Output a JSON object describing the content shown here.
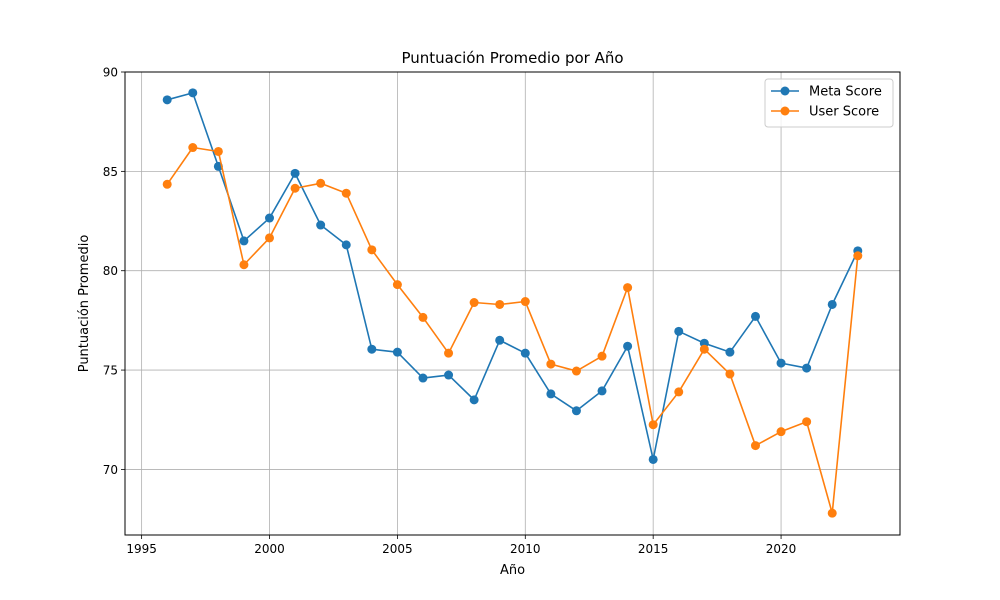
{
  "chart_data": {
    "type": "line",
    "title": "Puntuación Promedio por Año",
    "xlabel": "Año",
    "ylabel": "Puntuación Promedio",
    "xlim": [
      1994.35,
      2024.65
    ],
    "ylim": [
      66.7,
      90.0
    ],
    "xticks": [
      1995,
      2000,
      2005,
      2010,
      2015,
      2020
    ],
    "yticks": [
      70,
      75,
      80,
      85,
      90
    ],
    "grid": true,
    "legend_position": "top-right",
    "x": [
      1996,
      1997,
      1998,
      1999,
      2000,
      2001,
      2002,
      2003,
      2004,
      2005,
      2006,
      2007,
      2008,
      2009,
      2010,
      2011,
      2012,
      2013,
      2014,
      2015,
      2016,
      2017,
      2018,
      2019,
      2020,
      2021,
      2022,
      2023
    ],
    "series": [
      {
        "name": "Meta Score",
        "color": "#1f77b4",
        "values": [
          88.6,
          88.95,
          85.25,
          81.5,
          82.65,
          84.9,
          82.3,
          81.3,
          76.05,
          75.9,
          74.6,
          74.75,
          73.5,
          76.5,
          75.85,
          73.8,
          72.95,
          73.95,
          76.2,
          70.5,
          76.95,
          76.35,
          75.9,
          77.7,
          75.35,
          75.1,
          78.3,
          81.0
        ]
      },
      {
        "name": "User Score",
        "color": "#ff7f0e",
        "values": [
          84.35,
          86.2,
          86.0,
          80.3,
          81.65,
          84.15,
          84.4,
          83.9,
          81.05,
          79.3,
          77.65,
          75.85,
          78.4,
          78.3,
          78.45,
          75.3,
          74.95,
          75.7,
          79.15,
          72.25,
          73.9,
          76.05,
          74.8,
          71.2,
          71.9,
          72.4,
          67.8,
          80.75
        ]
      }
    ]
  }
}
